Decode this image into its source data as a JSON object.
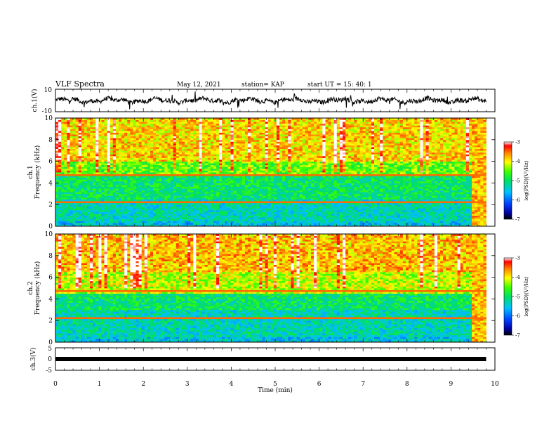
{
  "header": {
    "title": "VLF Spectra",
    "date": "May 12, 2021",
    "station": "station= KAP",
    "start": "start  UT =   15: 40: 1"
  },
  "chart_data": [
    {
      "type": "line",
      "panel": "ch1-waveform",
      "ylabel": "ch.1(V)",
      "ylim": [
        -10,
        10
      ],
      "yticks": [
        "10",
        "-10"
      ],
      "xlim": [
        0,
        10
      ],
      "description_series": "noisy waveform amplitude vs time",
      "series": [
        {
          "x": [
            0,
            0.5,
            1,
            1.5,
            2,
            2.5,
            3,
            3.5,
            4,
            4.5,
            5,
            5.5,
            6,
            6.5,
            7,
            7.5,
            8,
            8.5,
            9,
            9.5,
            9.8
          ],
          "values": [
            0,
            1,
            -1,
            2,
            0,
            -2,
            1,
            0,
            -1,
            2,
            1,
            -1,
            0,
            2,
            -1,
            1,
            0,
            -2,
            1,
            0,
            -1
          ]
        }
      ]
    },
    {
      "type": "heatmap",
      "panel": "ch1-spectrogram",
      "ylabel": "ch.1\nFrequency (kHz)",
      "ylabel_line1": "ch.1",
      "ylabel_line2": "Frequency (kHz)",
      "ylim": [
        0,
        10
      ],
      "yticks": [
        "0",
        "2",
        "4",
        "6",
        "8",
        "10"
      ],
      "xlim": [
        0,
        10
      ],
      "data_end_min": 9.8,
      "colorbar": {
        "label": "log(PSD)(V²/Hz)",
        "range": [
          -7,
          -3
        ],
        "ticks": [
          "-3",
          "-4",
          "-5",
          "-6",
          "-7"
        ]
      },
      "bands": [
        {
          "from": 0,
          "to": 0.5,
          "level": -5.5
        },
        {
          "from": 0.5,
          "to": 2.5,
          "level": -5.3
        },
        {
          "from": 2.5,
          "to": 4.6,
          "level": -5.0
        },
        {
          "from": 4.6,
          "to": 6,
          "level": -4.5
        },
        {
          "from": 6,
          "to": 10,
          "level": -3.9
        }
      ]
    },
    {
      "type": "heatmap",
      "panel": "ch2-spectrogram",
      "ylabel": "ch.2\nFrequency (kHz)",
      "ylabel_line1": "ch.2",
      "ylabel_line2": "Frequency (kHz)",
      "ylim": [
        0,
        10
      ],
      "yticks": [
        "0",
        "2",
        "4",
        "6",
        "8",
        "10"
      ],
      "xlim": [
        0,
        10
      ],
      "data_end_min": 9.8,
      "colorbar": {
        "label": "log(PSD)(V²/Hz)",
        "range": [
          -7,
          -3
        ],
        "ticks": [
          "-3",
          "-4",
          "-5",
          "-6",
          "-7"
        ]
      },
      "bands": [
        {
          "from": 0,
          "to": 0.5,
          "level": -5.5
        },
        {
          "from": 0.5,
          "to": 3,
          "level": -5.3
        },
        {
          "from": 3,
          "to": 4.5,
          "level": -5.0
        },
        {
          "from": 4.5,
          "to": 6.5,
          "level": -4.2
        },
        {
          "from": 6.5,
          "to": 10,
          "level": -3.8
        }
      ]
    },
    {
      "type": "line",
      "panel": "ch3-waveform",
      "ylabel": "ch.3(V)",
      "ylim": [
        -5,
        5
      ],
      "yticks": [
        "5",
        "0",
        "-5"
      ],
      "xlim": [
        0,
        10
      ],
      "xlabel": "Time (min)",
      "xticks": [
        "0",
        "1",
        "2",
        "3",
        "4",
        "5",
        "6",
        "7",
        "8",
        "9",
        "10"
      ],
      "series": [
        {
          "x": [
            0,
            9.8
          ],
          "values": [
            0,
            0
          ]
        }
      ]
    }
  ]
}
